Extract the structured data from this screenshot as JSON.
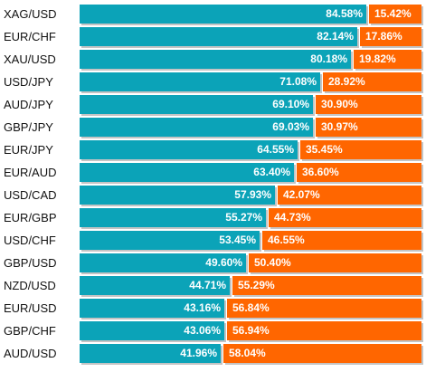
{
  "colors": {
    "long": "#0ba3b8",
    "short": "#ff6600"
  },
  "chart_data": {
    "type": "bar",
    "stacked": true,
    "orientation": "horizontal",
    "categories": [
      "XAG/USD",
      "EUR/CHF",
      "XAU/USD",
      "USD/JPY",
      "AUD/JPY",
      "GBP/JPY",
      "EUR/JPY",
      "EUR/AUD",
      "USD/CAD",
      "EUR/GBP",
      "USD/CHF",
      "GBP/USD",
      "NZD/USD",
      "EUR/USD",
      "GBP/CHF",
      "AUD/USD"
    ],
    "series": [
      {
        "values": [
          84.58,
          82.14,
          80.18,
          71.08,
          69.1,
          69.03,
          64.55,
          63.4,
          57.93,
          55.27,
          53.45,
          49.6,
          44.71,
          43.16,
          43.06,
          41.96
        ],
        "labels": [
          "84.58%",
          "82.14%",
          "80.18%",
          "71.08%",
          "69.10%",
          "69.03%",
          "64.55%",
          "63.40%",
          "57.93%",
          "55.27%",
          "53.45%",
          "49.60%",
          "44.71%",
          "43.16%",
          "43.06%",
          "41.96%"
        ]
      },
      {
        "values": [
          15.42,
          17.86,
          19.82,
          28.92,
          30.9,
          30.97,
          35.45,
          36.6,
          42.07,
          44.73,
          46.55,
          50.4,
          55.29,
          56.84,
          56.94,
          58.04
        ],
        "labels": [
          "15.42%",
          "17.86%",
          "19.82%",
          "28.92%",
          "30.90%",
          "30.97%",
          "35.45%",
          "36.60%",
          "42.07%",
          "44.73%",
          "46.55%",
          "50.40%",
          "55.29%",
          "56.84%",
          "56.94%",
          "58.04%"
        ]
      }
    ],
    "xlim": [
      0,
      100
    ]
  }
}
